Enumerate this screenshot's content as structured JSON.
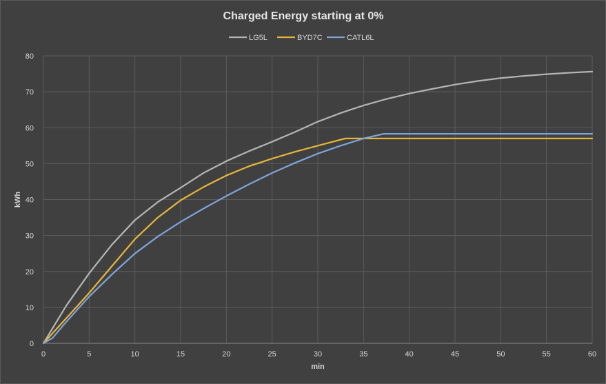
{
  "chart_data": {
    "type": "line",
    "title": "Charged Energy starting at 0%",
    "xlabel": "min",
    "ylabel": "kWh",
    "xlim": [
      0,
      60
    ],
    "ylim": [
      0,
      80
    ],
    "xticks": [
      0,
      5,
      10,
      15,
      20,
      25,
      30,
      35,
      40,
      45,
      50,
      55,
      60
    ],
    "yticks": [
      0,
      10,
      20,
      30,
      40,
      50,
      60,
      70,
      80
    ],
    "grid": true,
    "legend_position": "top",
    "series": [
      {
        "name": "LG5L",
        "color": "#b4b4b4",
        "x": [
          0,
          2.5,
          5,
          7.5,
          10,
          12.5,
          15,
          17.5,
          20,
          22.5,
          25,
          27.5,
          30,
          32.5,
          35,
          37.5,
          40,
          42.5,
          45,
          47.5,
          50,
          52.5,
          55,
          57.5,
          60
        ],
        "y": [
          0,
          10.5,
          19.5,
          27.5,
          34.3,
          39.3,
          43.3,
          47.4,
          50.7,
          53.5,
          56.1,
          58.8,
          61.7,
          64.1,
          66.2,
          68.0,
          69.5,
          70.8,
          72.0,
          73.0,
          73.8,
          74.4,
          74.9,
          75.3,
          75.6
        ]
      },
      {
        "name": "BYD7C",
        "color": "#e6b53a",
        "x": [
          0,
          2.5,
          5,
          7.5,
          10,
          12.5,
          15,
          17.5,
          20,
          22.5,
          25,
          27.5,
          30,
          33,
          35,
          40,
          45,
          50,
          55,
          60
        ],
        "y": [
          0,
          7,
          14,
          21.5,
          29,
          35,
          39.8,
          43.5,
          46.7,
          49.3,
          51.4,
          53.3,
          55,
          57,
          57,
          57,
          57,
          57,
          57,
          57
        ]
      },
      {
        "name": "CATL6L",
        "color": "#7fa3d8",
        "x": [
          0,
          1,
          2.5,
          5,
          7.5,
          10,
          12.5,
          15,
          17.5,
          20,
          22.5,
          25,
          27.5,
          30,
          32.5,
          35,
          37.2,
          40,
          45,
          50,
          55,
          60
        ],
        "y": [
          0,
          1.5,
          6,
          13,
          19.2,
          25,
          29.7,
          33.8,
          37.5,
          41,
          44.3,
          47.4,
          50.2,
          52.8,
          55,
          57,
          58.3,
          58.3,
          58.3,
          58.3,
          58.3,
          58.3
        ]
      }
    ]
  }
}
